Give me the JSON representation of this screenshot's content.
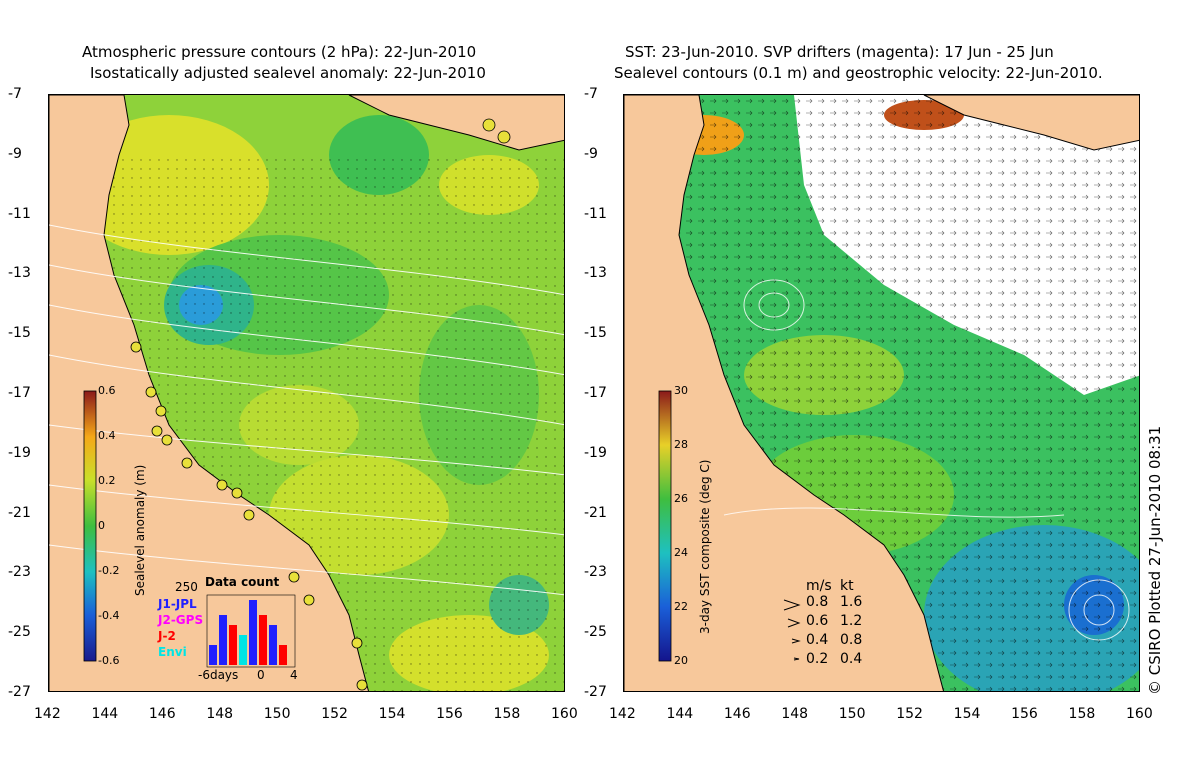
{
  "left": {
    "title_line1": "Atmospheric pressure contours (2 hPa): 22-Jun-2010",
    "title_line2": "Isostatically adjusted sealevel anomaly: 22-Jun-2010",
    "colorbar": {
      "label": "Sealevel anomaly (m)",
      "ticks": [
        "0.6",
        "0.4",
        "0.2",
        "0",
        "-0.2",
        "-0.4",
        "-0.6"
      ],
      "range": [
        -0.6,
        0.6
      ]
    },
    "data_count": {
      "title": "Data count",
      "max_label": "250",
      "legend": [
        {
          "name": "J1-JPL",
          "color": "#2020ff"
        },
        {
          "name": "J2-GPS",
          "color": "#ff00ff"
        },
        {
          "name": "J-2",
          "color": "#ff0000"
        },
        {
          "name": "Envi",
          "color": "#00e5e5"
        }
      ],
      "x_labels": [
        "-6days",
        "0",
        "4"
      ]
    }
  },
  "right": {
    "title_line1": "SST: 23-Jun-2010. SVP drifters (magenta): 17 Jun - 25 Jun",
    "title_line2": "Sealevel contours (0.1 m) and geostrophic velocity: 22-Jun-2010.",
    "colorbar": {
      "label": "3-day SST composite (deg C)",
      "ticks": [
        "30",
        "28",
        "26",
        "24",
        "22",
        "20"
      ],
      "range": [
        20,
        30
      ]
    },
    "speed_legend": {
      "header_ms": "m/s",
      "header_kt": "kt",
      "rows": [
        {
          "ms": "0.8",
          "kt": "1.6"
        },
        {
          "ms": "0.6",
          "kt": "1.2"
        },
        {
          "ms": "0.4",
          "kt": "0.8"
        },
        {
          "ms": "0.2",
          "kt": "0.4"
        }
      ]
    }
  },
  "axes": {
    "lat_ticks": [
      "-7",
      "-9",
      "-11",
      "-13",
      "-15",
      "-17",
      "-19",
      "-21",
      "-23",
      "-25",
      "-27"
    ],
    "lon_ticks": [
      "142",
      "144",
      "146",
      "148",
      "150",
      "152",
      "154",
      "156",
      "158",
      "160"
    ],
    "lat_range": [
      -27,
      -7
    ],
    "lon_range": [
      142,
      160
    ]
  },
  "credit": "© CSIRO Plotted 27-Jun-2010 08:31",
  "colors": {
    "land": "#f7c89b",
    "ocean_sla": "#8ed23a",
    "ocean_sst": "#3bc160",
    "sst_cold": "#1438a8",
    "sst_warm": "#d07012"
  }
}
